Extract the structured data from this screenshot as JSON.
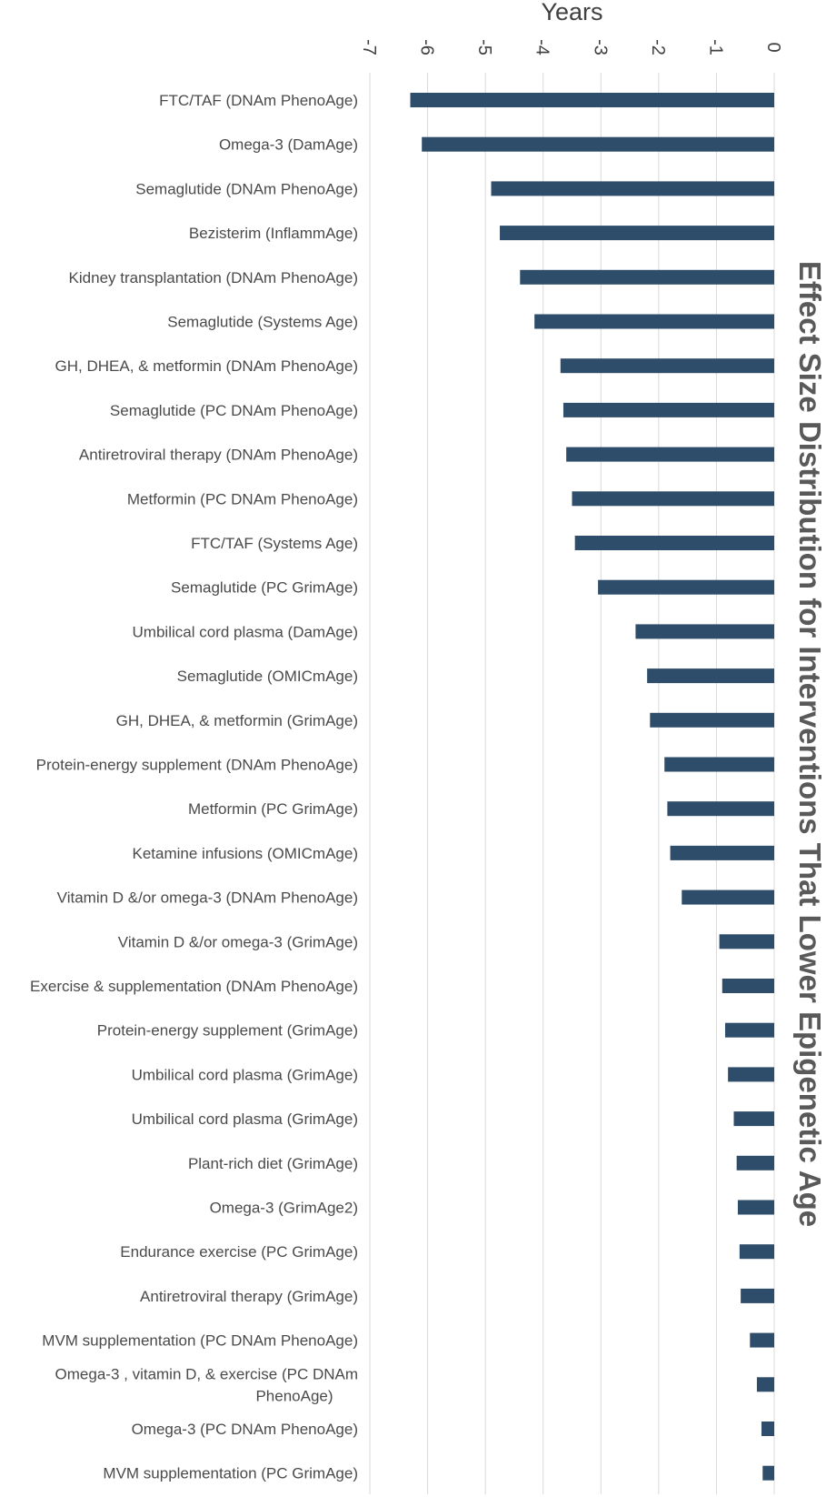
{
  "chart_data": {
    "type": "bar",
    "orientation": "horizontal",
    "title": "Effect Size Distribution for Interventions That Lower Epigenetic Age",
    "xlabel": "Years",
    "ylabel": "",
    "xlim": [
      -7,
      0
    ],
    "xticks": [
      -7,
      -6,
      -5,
      -4,
      -3,
      -2,
      -1,
      0
    ],
    "xtick_labels": [
      "-7",
      "-6",
      "-5",
      "-4",
      "-3",
      "-2",
      "-1",
      "0"
    ],
    "grid": true,
    "bar_color": "#2e4d6a",
    "categories": [
      "FTC/TAF (DNAm PhenoAge)",
      "Omega-3 (DamAge)",
      "Semaglutide (DNAm PhenoAge)",
      "Bezisterim (InflammAge)",
      "Kidney transplantation (DNAm PhenoAge)",
      "Semaglutide (Systems Age)",
      "GH, DHEA, & metformin (DNAm PhenoAge)",
      "Semaglutide (PC DNAm PhenoAge)",
      "Antiretroviral therapy (DNAm PhenoAge)",
      "Metformin (PC DNAm PhenoAge)",
      "FTC/TAF (Systems Age)",
      "Semaglutide (PC GrimAge)",
      "Umbilical cord plasma (DamAge)",
      "Semaglutide (OMICmAge)",
      "GH, DHEA, & metformin (GrimAge)",
      "Protein-energy supplement (DNAm PhenoAge)",
      "Metformin (PC GrimAge)",
      "Ketamine infusions (OMICmAge)",
      "Vitamin D &/or omega-3 (DNAm PhenoAge)",
      "Vitamin D &/or omega-3 (GrimAge)",
      "Exercise & supplementation (DNAm PhenoAge)",
      "Protein-energy supplement (GrimAge)",
      "Umbilical cord plasma (GrimAge)",
      "Umbilical cord plasma (GrimAge)",
      "Plant-rich diet (GrimAge)",
      "Omega-3 (GrimAge2)",
      "Endurance exercise (PC GrimAge)",
      "Antiretroviral therapy (GrimAge)",
      "MVM supplementation (PC DNAm PhenoAge)",
      "Omega-3 , vitamin D, & exercise (PC DNAm PhenoAge)",
      "Omega-3 (PC DNAm PhenoAge)",
      "MVM supplementation (PC GrimAge)"
    ],
    "values": [
      -6.3,
      -6.1,
      -4.9,
      -4.75,
      -4.4,
      -4.15,
      -3.7,
      -3.65,
      -3.6,
      -3.5,
      -3.45,
      -3.05,
      -2.4,
      -2.2,
      -2.15,
      -1.9,
      -1.85,
      -1.8,
      -1.6,
      -0.95,
      -0.9,
      -0.85,
      -0.8,
      -0.7,
      -0.65,
      -0.63,
      -0.6,
      -0.58,
      -0.42,
      -0.3,
      -0.22,
      -0.2
    ]
  }
}
